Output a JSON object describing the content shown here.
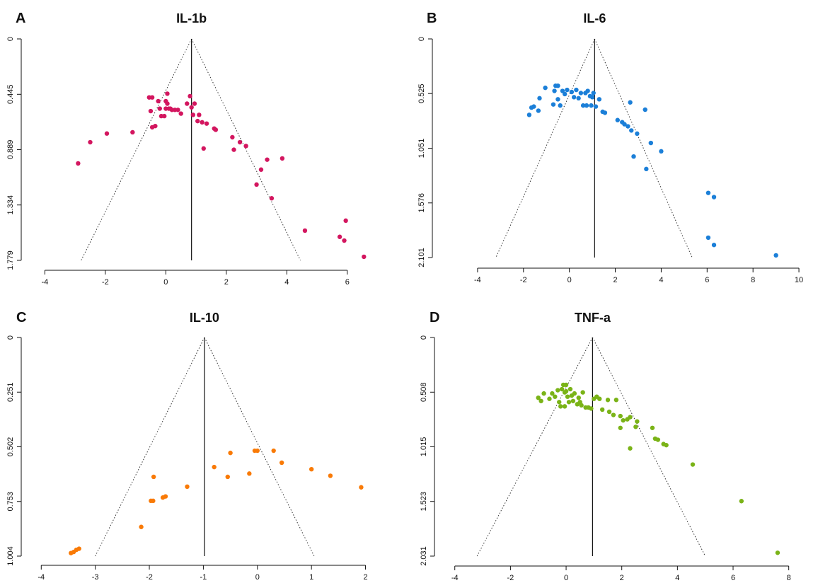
{
  "chart_data": [
    {
      "type": "scatter",
      "subtype": "funnel",
      "letter": "A",
      "title": "IL-1b",
      "color": "#d3165f",
      "xlim": [
        -4.5,
        7.9
      ],
      "ylim": [
        0,
        1.779
      ],
      "y_inverted": true,
      "x_ticks": [
        -4,
        -2,
        0,
        2,
        4,
        6
      ],
      "y_ticks": [
        "0",
        "0.445",
        "0.889",
        "1.334",
        "1.779"
      ],
      "center_x": 0.85,
      "funnel_base": [
        -2.8,
        4.45
      ],
      "points": [
        [
          -2.9,
          1.0
        ],
        [
          -2.5,
          0.83
        ],
        [
          -1.95,
          0.76
        ],
        [
          -1.1,
          0.75
        ],
        [
          -0.55,
          0.47
        ],
        [
          -0.45,
          0.47
        ],
        [
          -0.5,
          0.58
        ],
        [
          -0.45,
          0.71
        ],
        [
          -0.35,
          0.7
        ],
        [
          -0.25,
          0.5
        ],
        [
          -0.2,
          0.56
        ],
        [
          -0.15,
          0.62
        ],
        [
          -0.05,
          0.62
        ],
        [
          0.0,
          0.56
        ],
        [
          0.0,
          0.5
        ],
        [
          0.05,
          0.44
        ],
        [
          0.05,
          0.52
        ],
        [
          0.1,
          0.56
        ],
        [
          0.15,
          0.56
        ],
        [
          0.2,
          0.57
        ],
        [
          0.3,
          0.57
        ],
        [
          0.4,
          0.57
        ],
        [
          0.5,
          0.6
        ],
        [
          0.7,
          0.52
        ],
        [
          0.8,
          0.46
        ],
        [
          0.85,
          0.55
        ],
        [
          0.9,
          0.61
        ],
        [
          0.95,
          0.52
        ],
        [
          1.05,
          0.66
        ],
        [
          1.1,
          0.61
        ],
        [
          1.2,
          0.67
        ],
        [
          1.25,
          0.88
        ],
        [
          1.35,
          0.68
        ],
        [
          1.6,
          0.72
        ],
        [
          1.65,
          0.73
        ],
        [
          2.2,
          0.79
        ],
        [
          2.25,
          0.89
        ],
        [
          2.45,
          0.83
        ],
        [
          2.65,
          0.86
        ],
        [
          3.0,
          1.17
        ],
        [
          3.15,
          1.05
        ],
        [
          3.35,
          0.97
        ],
        [
          3.5,
          1.28
        ],
        [
          3.85,
          0.96
        ],
        [
          4.6,
          1.54
        ],
        [
          5.75,
          1.59
        ],
        [
          5.9,
          1.62
        ],
        [
          5.95,
          1.46
        ],
        [
          6.55,
          1.75
        ]
      ]
    },
    {
      "type": "scatter",
      "subtype": "funnel",
      "letter": "B",
      "title": "IL-6",
      "color": "#1b7fd8",
      "xlim": [
        -5.6,
        10.8
      ],
      "ylim": [
        0,
        2.101
      ],
      "y_inverted": true,
      "x_ticks": [
        -4,
        -2,
        0,
        2,
        4,
        6,
        8,
        10
      ],
      "y_ticks": [
        "0",
        "0.525",
        "1.051",
        "1.576",
        "2.101"
      ],
      "center_x": 1.1,
      "funnel_base": [
        -3.2,
        5.35
      ],
      "points": [
        [
          -1.75,
          0.73
        ],
        [
          -1.65,
          0.66
        ],
        [
          -1.55,
          0.65
        ],
        [
          -1.35,
          0.69
        ],
        [
          -1.3,
          0.57
        ],
        [
          -1.05,
          0.47
        ],
        [
          -0.7,
          0.63
        ],
        [
          -0.65,
          0.5
        ],
        [
          -0.6,
          0.45
        ],
        [
          -0.5,
          0.45
        ],
        [
          -0.5,
          0.58
        ],
        [
          -0.4,
          0.64
        ],
        [
          -0.3,
          0.5
        ],
        [
          -0.2,
          0.53
        ],
        [
          -0.1,
          0.49
        ],
        [
          0.1,
          0.51
        ],
        [
          0.2,
          0.56
        ],
        [
          0.3,
          0.49
        ],
        [
          0.4,
          0.57
        ],
        [
          0.5,
          0.52
        ],
        [
          0.6,
          0.64
        ],
        [
          0.7,
          0.52
        ],
        [
          0.75,
          0.64
        ],
        [
          0.8,
          0.5
        ],
        [
          0.9,
          0.55
        ],
        [
          0.95,
          0.64
        ],
        [
          1.0,
          0.56
        ],
        [
          1.05,
          0.52
        ],
        [
          1.15,
          0.65
        ],
        [
          1.3,
          0.58
        ],
        [
          1.45,
          0.7
        ],
        [
          1.55,
          0.71
        ],
        [
          2.1,
          0.78
        ],
        [
          2.3,
          0.8
        ],
        [
          2.4,
          0.82
        ],
        [
          2.55,
          0.84
        ],
        [
          2.65,
          0.61
        ],
        [
          2.7,
          0.88
        ],
        [
          2.8,
          1.13
        ],
        [
          2.95,
          0.91
        ],
        [
          3.3,
          0.68
        ],
        [
          3.35,
          1.25
        ],
        [
          3.55,
          1.0
        ],
        [
          4.0,
          1.08
        ],
        [
          6.05,
          1.48
        ],
        [
          6.3,
          1.52
        ],
        [
          6.05,
          1.91
        ],
        [
          6.3,
          1.98
        ],
        [
          9.0,
          2.08
        ]
      ]
    },
    {
      "type": "scatter",
      "subtype": "funnel",
      "letter": "C",
      "title": "IL-10",
      "color": "#f97a06",
      "xlim": [
        -4.2,
        2.7
      ],
      "ylim": [
        0,
        1.004
      ],
      "y_inverted": true,
      "x_ticks": [
        -4,
        -3,
        -2,
        -1,
        0,
        1,
        2
      ],
      "y_ticks": [
        "0",
        "0.251",
        "0.502",
        "0.753",
        "1.004"
      ],
      "center_x": -0.98,
      "funnel_base": [
        -3.0,
        1.05
      ],
      "points": [
        [
          -3.45,
          0.99
        ],
        [
          -3.4,
          0.985
        ],
        [
          -3.35,
          0.975
        ],
        [
          -3.3,
          0.97
        ],
        [
          -2.15,
          0.87
        ],
        [
          -1.97,
          0.75
        ],
        [
          -1.93,
          0.75
        ],
        [
          -1.75,
          0.735
        ],
        [
          -1.7,
          0.73
        ],
        [
          -1.92,
          0.64
        ],
        [
          -1.3,
          0.685
        ],
        [
          -0.8,
          0.595
        ],
        [
          -0.55,
          0.64
        ],
        [
          -0.5,
          0.53
        ],
        [
          -0.15,
          0.625
        ],
        [
          -0.05,
          0.52
        ],
        [
          0.0,
          0.52
        ],
        [
          0.3,
          0.52
        ],
        [
          0.45,
          0.575
        ],
        [
          1.0,
          0.605
        ],
        [
          1.35,
          0.635
        ],
        [
          1.92,
          0.688
        ]
      ]
    },
    {
      "type": "scatter",
      "subtype": "funnel",
      "letter": "D",
      "title": "TNF-a",
      "color": "#7ab317",
      "xlim": [
        -4.4,
        9.0
      ],
      "ylim": [
        0,
        2.031
      ],
      "y_inverted": true,
      "x_ticks": [
        -4,
        -2,
        0,
        2,
        4,
        6,
        8
      ],
      "y_ticks": [
        "0",
        "0.508",
        "1.015",
        "1.523",
        "2.031"
      ],
      "center_x": 0.95,
      "funnel_base": [
        -3.2,
        5.0
      ],
      "points": [
        [
          -1.0,
          0.56
        ],
        [
          -0.9,
          0.59
        ],
        [
          -0.8,
          0.52
        ],
        [
          -0.6,
          0.57
        ],
        [
          -0.5,
          0.52
        ],
        [
          -0.4,
          0.55
        ],
        [
          -0.3,
          0.49
        ],
        [
          -0.25,
          0.6
        ],
        [
          -0.2,
          0.64
        ],
        [
          -0.15,
          0.48
        ],
        [
          -0.1,
          0.44
        ],
        [
          -0.05,
          0.51
        ],
        [
          -0.05,
          0.64
        ],
        [
          0.0,
          0.5
        ],
        [
          0.0,
          0.44
        ],
        [
          0.05,
          0.55
        ],
        [
          0.1,
          0.6
        ],
        [
          0.15,
          0.48
        ],
        [
          0.2,
          0.54
        ],
        [
          0.25,
          0.59
        ],
        [
          0.3,
          0.52
        ],
        [
          0.4,
          0.62
        ],
        [
          0.45,
          0.56
        ],
        [
          0.5,
          0.6
        ],
        [
          0.55,
          0.63
        ],
        [
          0.6,
          0.51
        ],
        [
          0.7,
          0.65
        ],
        [
          0.8,
          0.65
        ],
        [
          0.9,
          0.66
        ],
        [
          1.0,
          0.57
        ],
        [
          1.1,
          0.55
        ],
        [
          1.2,
          0.57
        ],
        [
          1.3,
          0.67
        ],
        [
          1.5,
          0.58
        ],
        [
          1.55,
          0.69
        ],
        [
          1.7,
          0.72
        ],
        [
          1.8,
          0.58
        ],
        [
          1.95,
          0.73
        ],
        [
          1.95,
          0.84
        ],
        [
          2.05,
          0.77
        ],
        [
          2.2,
          0.76
        ],
        [
          2.3,
          0.74
        ],
        [
          2.5,
          0.83
        ],
        [
          2.55,
          0.78
        ],
        [
          2.3,
          1.03
        ],
        [
          3.1,
          0.84
        ],
        [
          3.2,
          0.94
        ],
        [
          3.3,
          0.95
        ],
        [
          3.5,
          0.99
        ],
        [
          3.6,
          1.0
        ],
        [
          4.55,
          1.18
        ],
        [
          6.3,
          1.52
        ],
        [
          7.6,
          2.0
        ]
      ]
    }
  ]
}
